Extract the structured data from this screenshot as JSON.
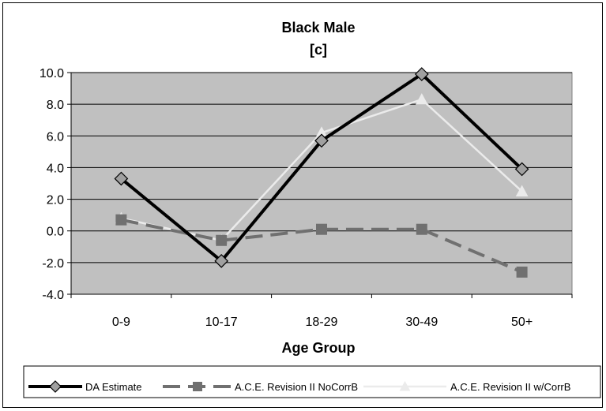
{
  "chart_data": {
    "type": "line",
    "title": "Black Male",
    "subtitle": "[c]",
    "xlabel": "Age Group",
    "ylabel": "",
    "categories": [
      "0-9",
      "10-17",
      "18-29",
      "30-49",
      "50+"
    ],
    "ylim": [
      -4.0,
      10.0
    ],
    "yticks": [
      "-4.0",
      "-2.0",
      "0.0",
      "2.0",
      "4.0",
      "6.0",
      "8.0",
      "10.0"
    ],
    "grid": true,
    "plot_background": "#c0c0c0",
    "legend_position": "bottom",
    "series": [
      {
        "name": "DA Estimate",
        "values": [
          3.3,
          -1.9,
          5.7,
          9.9,
          3.9
        ],
        "color": "#000000",
        "marker": "diamond",
        "dash": "solid"
      },
      {
        "name": "A.C.E. Revision II NoCorrB",
        "values": [
          0.7,
          -0.6,
          0.1,
          0.1,
          -2.6
        ],
        "color": "#707070",
        "marker": "square",
        "dash": "dashed"
      },
      {
        "name": "A.C.E. Revision II w/CorrB",
        "values": [
          0.8,
          -0.6,
          6.2,
          8.3,
          2.5
        ],
        "color": "#ebebeb",
        "marker": "triangle",
        "dash": "solid"
      }
    ]
  }
}
